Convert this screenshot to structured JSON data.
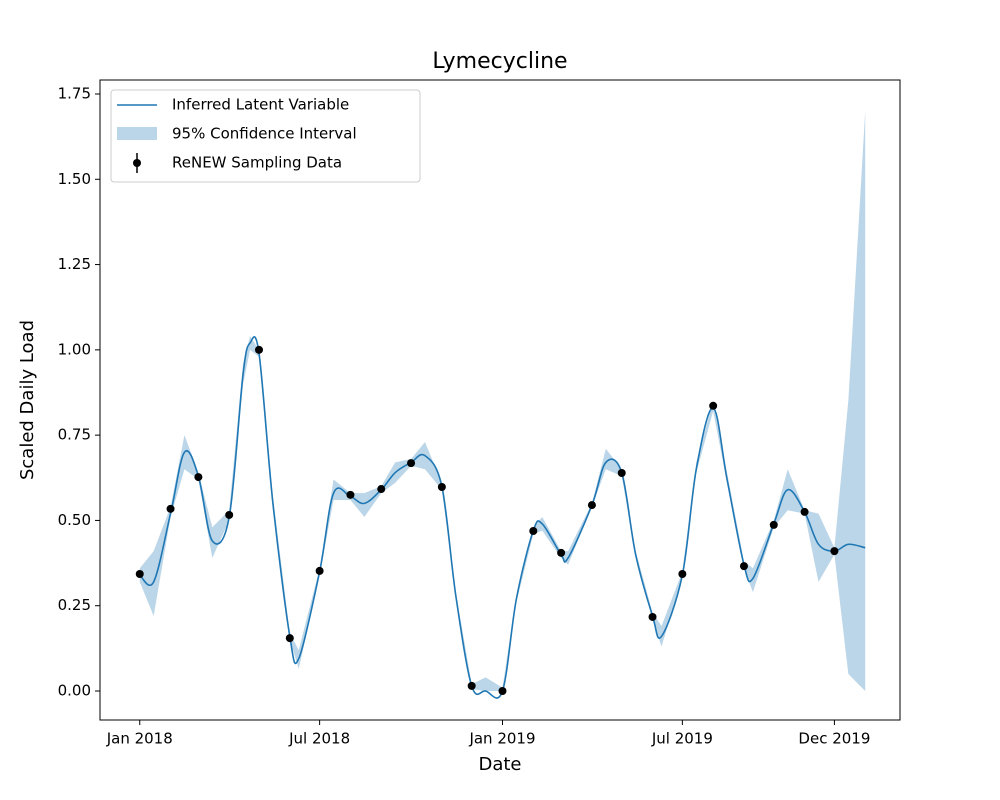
{
  "chart_data": {
    "type": "line",
    "title": "Lymecycline",
    "x_label": "Date",
    "y_label": "Scaled Daily Load",
    "xlim": [
      "2017-11-22",
      "2020-02-05"
    ],
    "ylim": [
      -0.085,
      1.791
    ],
    "xticks": [
      {
        "value": "2018-01-01",
        "label": "Jan 2018"
      },
      {
        "value": "2018-07-01",
        "label": "Jul 2018"
      },
      {
        "value": "2019-01-01",
        "label": "Jan 2019"
      },
      {
        "value": "2019-07-01",
        "label": "Jul 2019"
      },
      {
        "value": "2019-12-01",
        "label": "Dec 2019"
      }
    ],
    "yticks": [
      {
        "value": 0,
        "label": "0.00"
      },
      {
        "value": 0.25,
        "label": "0.25"
      },
      {
        "value": 0.5,
        "label": "0.50"
      },
      {
        "value": 0.75,
        "label": "0.75"
      },
      {
        "value": 1,
        "label": "1.00"
      },
      {
        "value": 1.25,
        "label": "1.25"
      },
      {
        "value": 1.5,
        "label": "1.50"
      },
      {
        "value": 1.75,
        "label": "1.75"
      }
    ],
    "legend": "upper left",
    "line": {
      "name": "Inferred Latent Variable",
      "color": "#1f77b4",
      "x": [
        "2018-01-01",
        "2018-01-15",
        "2018-02-01",
        "2018-02-15",
        "2018-03-01",
        "2018-03-15",
        "2018-04-01",
        "2018-04-15",
        "2018-04-22",
        "2018-05-01",
        "2018-05-15",
        "2018-06-01",
        "2018-06-10",
        "2018-07-01",
        "2018-07-15",
        "2018-08-01",
        "2018-08-15",
        "2018-09-01",
        "2018-09-15",
        "2018-10-01",
        "2018-10-15",
        "2018-11-01",
        "2018-11-15",
        "2018-12-01",
        "2018-12-15",
        "2019-01-01",
        "2019-01-15",
        "2019-02-01",
        "2019-02-10",
        "2019-03-01",
        "2019-03-08",
        "2019-04-01",
        "2019-04-15",
        "2019-05-01",
        "2019-05-15",
        "2019-06-01",
        "2019-06-10",
        "2019-07-01",
        "2019-07-15",
        "2019-08-01",
        "2019-08-15",
        "2019-09-01",
        "2019-09-10",
        "2019-10-01",
        "2019-10-15",
        "2019-11-01",
        "2019-11-15",
        "2019-12-01",
        "2019-12-15",
        "2020-01-01"
      ],
      "values": [
        0.34,
        0.32,
        0.52,
        0.7,
        0.63,
        0.44,
        0.51,
        0.93,
        1.02,
        0.99,
        0.55,
        0.16,
        0.095,
        0.35,
        0.58,
        0.57,
        0.55,
        0.59,
        0.64,
        0.67,
        0.69,
        0.6,
        0.28,
        0.015,
        0,
        0,
        0.27,
        0.47,
        0.49,
        0.4,
        0.39,
        0.545,
        0.67,
        0.64,
        0.4,
        0.22,
        0.16,
        0.34,
        0.65,
        0.83,
        0.62,
        0.37,
        0.33,
        0.49,
        0.59,
        0.525,
        0.43,
        0.41,
        0.43,
        0.42
      ]
    },
    "band": {
      "name": "95% Confidence Interval",
      "color": "#1f77b4",
      "alpha": 0.3,
      "lower": [
        0.32,
        0.22,
        0.51,
        0.65,
        0.62,
        0.39,
        0.5,
        0.9,
        1,
        0.98,
        0.53,
        0.15,
        0.065,
        0.34,
        0.56,
        0.56,
        0.51,
        0.58,
        0.61,
        0.66,
        0.65,
        0.59,
        0.27,
        0.005,
        0,
        0,
        0.26,
        0.46,
        0.47,
        0.39,
        0.37,
        0.54,
        0.65,
        0.63,
        0.39,
        0.21,
        0.13,
        0.33,
        0.64,
        0.82,
        0.61,
        0.36,
        0.29,
        0.48,
        0.53,
        0.52,
        0.32,
        0.4,
        0.05,
        0
      ],
      "upper": [
        0.36,
        0.41,
        0.54,
        0.75,
        0.64,
        0.48,
        0.53,
        0.96,
        1.04,
        1,
        0.57,
        0.17,
        0.12,
        0.36,
        0.62,
        0.58,
        0.58,
        0.6,
        0.67,
        0.68,
        0.73,
        0.61,
        0.29,
        0.02,
        0.04,
        0.01,
        0.28,
        0.48,
        0.51,
        0.41,
        0.41,
        0.55,
        0.71,
        0.65,
        0.41,
        0.23,
        0.19,
        0.35,
        0.67,
        0.85,
        0.64,
        0.38,
        0.36,
        0.5,
        0.65,
        0.53,
        0.52,
        0.42,
        0.85,
        1.7
      ]
    },
    "points": {
      "name": "ReNEW Sampling Data",
      "color": "#000000",
      "x": [
        "2018-01-01",
        "2018-02-01",
        "2018-03-01",
        "2018-04-01",
        "2018-05-01",
        "2018-06-01",
        "2018-07-01",
        "2018-08-01",
        "2018-09-01",
        "2018-10-01",
        "2018-11-01",
        "2018-12-01",
        "2019-01-01",
        "2019-02-01",
        "2019-03-01",
        "2019-04-01",
        "2019-05-01",
        "2019-06-01",
        "2019-07-01",
        "2019-08-01",
        "2019-09-01",
        "2019-10-01",
        "2019-11-01",
        "2019-12-01"
      ],
      "values": [
        0.343,
        0.534,
        0.627,
        0.516,
        1,
        0.155,
        0.352,
        0.575,
        0.592,
        0.668,
        0.598,
        0.015,
        0,
        0.469,
        0.405,
        0.545,
        0.639,
        0.217,
        0.343,
        0.836,
        0.366,
        0.487,
        0.525,
        0.41
      ]
    }
  }
}
